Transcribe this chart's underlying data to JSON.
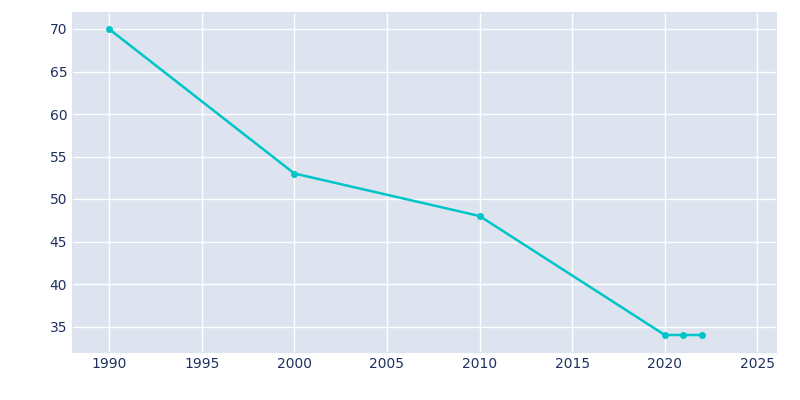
{
  "years": [
    1990,
    2000,
    2010,
    2020,
    2021,
    2022
  ],
  "population": [
    70,
    53,
    48,
    34,
    34,
    34
  ],
  "line_color": "#00c5c8",
  "marker": "o",
  "marker_size": 4,
  "line_width": 1.8,
  "background_color": "#dde4ef",
  "fig_background_color": "#ffffff",
  "grid_color": "#ffffff",
  "spine_color": "#c0c8d8",
  "tick_color": "#1e3060",
  "xlim": [
    1988,
    2026
  ],
  "ylim": [
    32,
    72
  ],
  "xticks": [
    1990,
    1995,
    2000,
    2005,
    2010,
    2015,
    2020,
    2025
  ],
  "yticks": [
    35,
    40,
    45,
    50,
    55,
    60,
    65,
    70
  ]
}
